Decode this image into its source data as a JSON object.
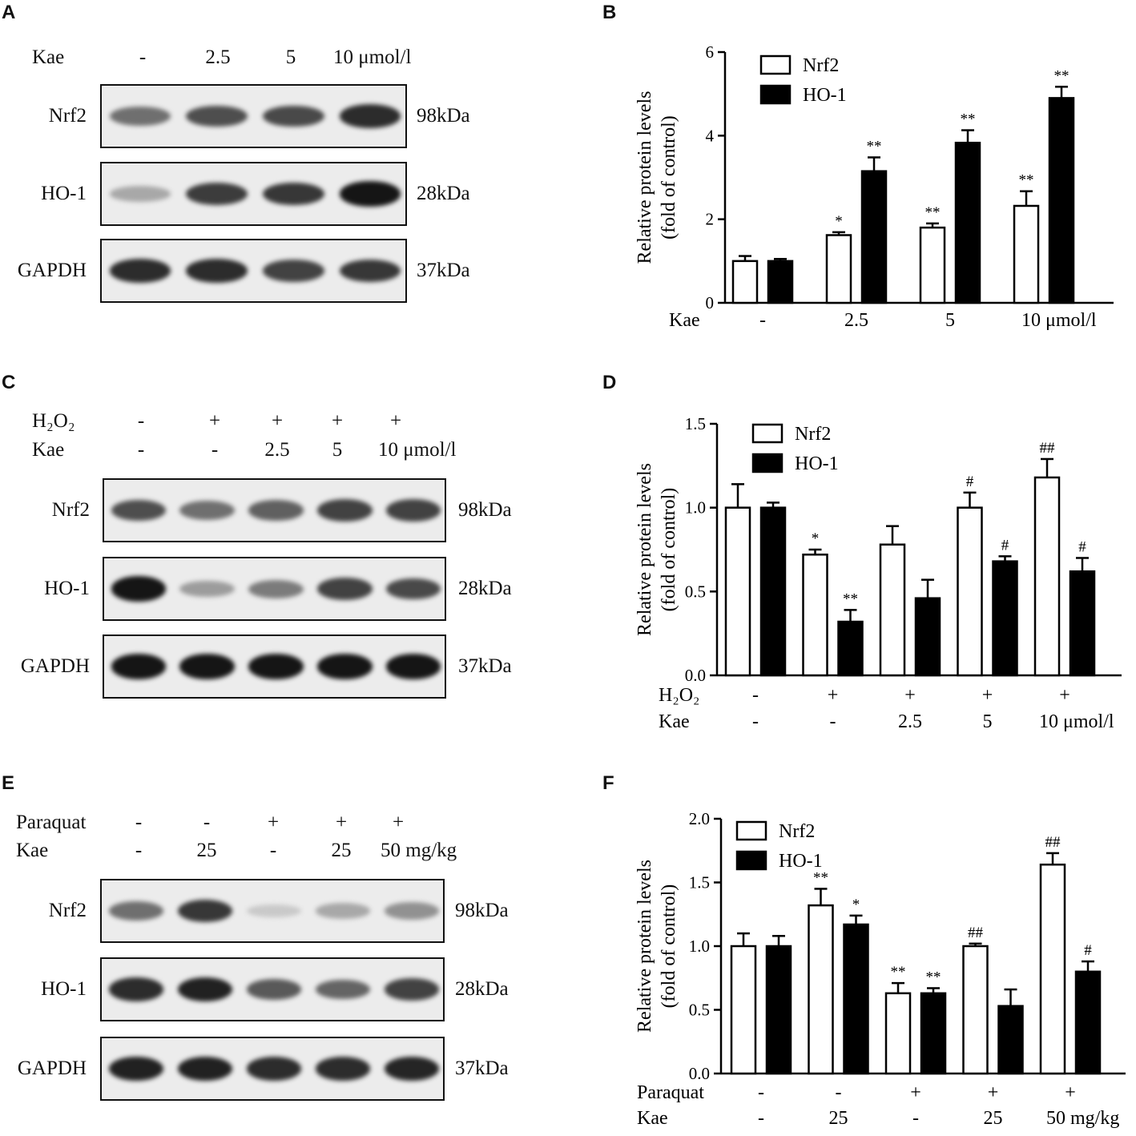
{
  "panels": {
    "A": {
      "letter": "A",
      "conditions": [
        {
          "label": "Kae",
          "values": [
            "-",
            "2.5",
            "5",
            "10 μmol/l"
          ]
        }
      ],
      "blots": [
        {
          "name": "Nrf2",
          "kda": "98kDa",
          "intensity": [
            0.55,
            0.7,
            0.72,
            0.85
          ]
        },
        {
          "name": "HO-1",
          "kda": "28kDa",
          "intensity": [
            0.3,
            0.78,
            0.8,
            0.95
          ]
        },
        {
          "name": "GAPDH",
          "kda": "37kDa",
          "intensity": [
            0.85,
            0.85,
            0.75,
            0.8
          ]
        }
      ]
    },
    "C": {
      "letter": "C",
      "conditions": [
        {
          "label": "H₂O₂",
          "values": [
            "-",
            "+",
            "+",
            "+",
            "+"
          ]
        },
        {
          "label": "Kae",
          "values": [
            "-",
            "-",
            "2.5",
            "5",
            "10 μmol/l"
          ]
        }
      ],
      "blots": [
        {
          "name": "Nrf2",
          "kda": "98kDa",
          "intensity": [
            0.7,
            0.55,
            0.62,
            0.75,
            0.75
          ]
        },
        {
          "name": "HO-1",
          "kda": "28kDa",
          "intensity": [
            0.95,
            0.35,
            0.5,
            0.75,
            0.72
          ]
        },
        {
          "name": "GAPDH",
          "kda": "37kDa",
          "intensity": [
            0.95,
            0.95,
            0.95,
            0.95,
            0.95
          ]
        }
      ]
    },
    "E": {
      "letter": "E",
      "conditions": [
        {
          "label": "Paraquat",
          "values": [
            "-",
            "-",
            "+",
            "+",
            "+"
          ]
        },
        {
          "label": "Kae",
          "values": [
            "-",
            "25",
            "-",
            "25",
            "50 mg/kg"
          ]
        }
      ],
      "blots": [
        {
          "name": "Nrf2",
          "kda": "98kDa",
          "intensity": [
            0.55,
            0.8,
            0.15,
            0.3,
            0.4
          ]
        },
        {
          "name": "HO-1",
          "kda": "28kDa",
          "intensity": [
            0.85,
            0.9,
            0.65,
            0.6,
            0.75
          ]
        },
        {
          "name": "GAPDH",
          "kda": "37kDa",
          "intensity": [
            0.9,
            0.9,
            0.85,
            0.85,
            0.88
          ]
        }
      ]
    }
  },
  "chart_data": [
    {
      "panel": "B",
      "type": "bar",
      "ylabel": [
        "Relative protein levels",
        "(fold of control)"
      ],
      "ylim": [
        0,
        6
      ],
      "yticks": [
        "0",
        "2",
        "4",
        "6"
      ],
      "conditions": [
        {
          "label": "Kae",
          "values": [
            "-",
            "2.5",
            "5",
            "10 μmol/l"
          ]
        }
      ],
      "series": [
        {
          "name": "Nrf2",
          "fill": "#ffffff",
          "values": [
            1.0,
            1.62,
            1.8,
            2.32
          ],
          "errors": [
            0.12,
            0.07,
            0.1,
            0.35
          ],
          "sig": [
            "",
            "*",
            "**",
            "**"
          ]
        },
        {
          "name": "HO-1",
          "fill": "#000000",
          "values": [
            1.0,
            3.15,
            3.83,
            4.9
          ],
          "errors": [
            0.05,
            0.33,
            0.3,
            0.27
          ],
          "sig": [
            "",
            "**",
            "**",
            "**"
          ]
        }
      ]
    },
    {
      "panel": "D",
      "type": "bar",
      "ylabel": [
        "Relative protein levels",
        "(fold of control)"
      ],
      "ylim": [
        0,
        1.5
      ],
      "yticks": [
        "0.0",
        "0.5",
        "1.0",
        "1.5"
      ],
      "conditions": [
        {
          "label": "H₂O₂",
          "values": [
            "-",
            "+",
            "+",
            "+",
            "+"
          ]
        },
        {
          "label": "Kae",
          "values": [
            "-",
            "-",
            "2.5",
            "5",
            "10 μmol/l"
          ]
        }
      ],
      "series": [
        {
          "name": "Nrf2",
          "fill": "#ffffff",
          "values": [
            1.0,
            0.72,
            0.78,
            1.0,
            1.18
          ],
          "errors": [
            0.14,
            0.03,
            0.11,
            0.09,
            0.11
          ],
          "sig": [
            "",
            "*",
            "",
            "#",
            "##"
          ]
        },
        {
          "name": "HO-1",
          "fill": "#000000",
          "values": [
            1.0,
            0.32,
            0.46,
            0.68,
            0.62
          ],
          "errors": [
            0.03,
            0.07,
            0.11,
            0.03,
            0.08
          ],
          "sig": [
            "",
            "**",
            "",
            "#",
            "#"
          ]
        }
      ]
    },
    {
      "panel": "F",
      "type": "bar",
      "ylabel": [
        "Relative protein levels",
        "(fold of control)"
      ],
      "ylim": [
        0,
        2.0
      ],
      "yticks": [
        "0.0",
        "0.5",
        "1.0",
        "1.5",
        "2.0"
      ],
      "conditions": [
        {
          "label": "Paraquat",
          "values": [
            "-",
            "-",
            "+",
            "+",
            "+"
          ]
        },
        {
          "label": "Kae",
          "values": [
            "-",
            "25",
            "-",
            "25",
            "50 mg/kg"
          ]
        }
      ],
      "series": [
        {
          "name": "Nrf2",
          "fill": "#ffffff",
          "values": [
            1.0,
            1.32,
            0.63,
            1.0,
            1.64
          ],
          "errors": [
            0.1,
            0.13,
            0.08,
            0.02,
            0.09
          ],
          "sig": [
            "",
            "**",
            "**",
            "##",
            "##"
          ]
        },
        {
          "name": "HO-1",
          "fill": "#000000",
          "values": [
            1.0,
            1.17,
            0.63,
            0.53,
            0.8
          ],
          "errors": [
            0.08,
            0.07,
            0.04,
            0.13,
            0.08
          ],
          "sig": [
            "",
            "*",
            "**",
            "",
            "#"
          ]
        }
      ]
    }
  ]
}
